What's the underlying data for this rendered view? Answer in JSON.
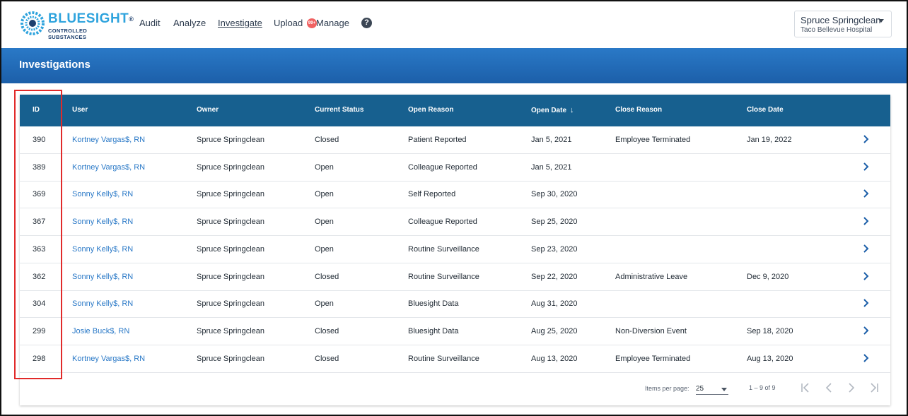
{
  "brand": {
    "name": "BLUESIGHT",
    "reg": "®",
    "subtitle": "CONTROLLED SUBSTANCES"
  },
  "nav": {
    "items": [
      {
        "label": "Audit",
        "active": false
      },
      {
        "label": "Analyze",
        "active": false
      },
      {
        "label": "Investigate",
        "active": true
      },
      {
        "label": "Upload",
        "active": false
      },
      {
        "label": "Manage",
        "active": false
      }
    ],
    "upload_badge": "99+",
    "help_icon": "help-circle-icon"
  },
  "account": {
    "name": "Spruce Springclean",
    "site": "Taco Bellevue Hospital"
  },
  "page": {
    "title": "Investigations"
  },
  "table": {
    "columns": [
      "ID",
      "User",
      "Owner",
      "Current Status",
      "Open Reason",
      "Open Date",
      "Close Reason",
      "Close Date"
    ],
    "sort_icon": "arrow-down-icon",
    "rows": [
      {
        "id": "390",
        "user": "Kortney Vargas$, RN",
        "owner": "Spruce Springclean",
        "status": "Closed",
        "open_reason": "Patient Reported",
        "open_date": "Jan 5, 2021",
        "close_reason": "Employee Terminated",
        "close_date": "Jan 19, 2022"
      },
      {
        "id": "389",
        "user": "Kortney Vargas$, RN",
        "owner": "Spruce Springclean",
        "status": "Open",
        "open_reason": "Colleague Reported",
        "open_date": "Jan 5, 2021",
        "close_reason": "",
        "close_date": ""
      },
      {
        "id": "369",
        "user": "Sonny Kelly$, RN",
        "owner": "Spruce Springclean",
        "status": "Open",
        "open_reason": "Self Reported",
        "open_date": "Sep 30, 2020",
        "close_reason": "",
        "close_date": ""
      },
      {
        "id": "367",
        "user": "Sonny Kelly$, RN",
        "owner": "Spruce Springclean",
        "status": "Open",
        "open_reason": "Colleague Reported",
        "open_date": "Sep 25, 2020",
        "close_reason": "",
        "close_date": ""
      },
      {
        "id": "363",
        "user": "Sonny Kelly$, RN",
        "owner": "Spruce Springclean",
        "status": "Open",
        "open_reason": "Routine Surveillance",
        "open_date": "Sep 23, 2020",
        "close_reason": "",
        "close_date": ""
      },
      {
        "id": "362",
        "user": "Sonny Kelly$, RN",
        "owner": "Spruce Springclean",
        "status": "Closed",
        "open_reason": "Routine Surveillance",
        "open_date": "Sep 22, 2020",
        "close_reason": "Administrative Leave",
        "close_date": "Dec 9, 2020"
      },
      {
        "id": "304",
        "user": "Sonny Kelly$, RN",
        "owner": "Spruce Springclean",
        "status": "Open",
        "open_reason": "Bluesight Data",
        "open_date": "Aug 31, 2020",
        "close_reason": "",
        "close_date": ""
      },
      {
        "id": "299",
        "user": "Josie Buck$, RN",
        "owner": "Spruce Springclean",
        "status": "Closed",
        "open_reason": "Bluesight Data",
        "open_date": "Aug 25, 2020",
        "close_reason": "Non-Diversion Event",
        "close_date": "Sep 18, 2020"
      },
      {
        "id": "298",
        "user": "Kortney Vargas$, RN",
        "owner": "Spruce Springclean",
        "status": "Closed",
        "open_reason": "Routine Surveillance",
        "open_date": "Aug 13, 2020",
        "close_reason": "Employee Terminated",
        "close_date": "Aug 13, 2020"
      }
    ]
  },
  "paginator": {
    "items_per_page_label": "Items per page:",
    "page_size": "25",
    "range": "1 – 9 of 9"
  },
  "colors": {
    "brand_blue": "#2ea3dd",
    "band_blue": "#1c5fa9",
    "table_header": "#17608f",
    "link_blue": "#2a79c7",
    "highlight_red": "#e12a2a"
  }
}
